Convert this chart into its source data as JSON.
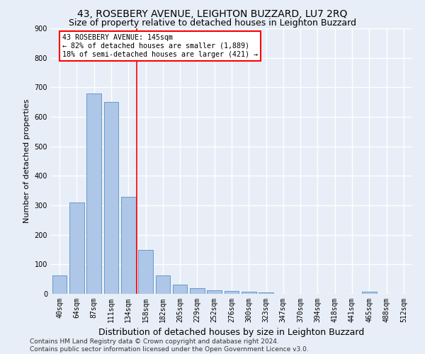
{
  "title": "43, ROSEBERY AVENUE, LEIGHTON BUZZARD, LU7 2RQ",
  "subtitle": "Size of property relative to detached houses in Leighton Buzzard",
  "xlabel": "Distribution of detached houses by size in Leighton Buzzard",
  "ylabel": "Number of detached properties",
  "categories": [
    "40sqm",
    "64sqm",
    "87sqm",
    "111sqm",
    "134sqm",
    "158sqm",
    "182sqm",
    "205sqm",
    "229sqm",
    "252sqm",
    "276sqm",
    "300sqm",
    "323sqm",
    "347sqm",
    "370sqm",
    "394sqm",
    "418sqm",
    "441sqm",
    "465sqm",
    "488sqm",
    "512sqm"
  ],
  "values": [
    62,
    310,
    680,
    650,
    330,
    150,
    63,
    32,
    20,
    12,
    10,
    8,
    5,
    0,
    0,
    0,
    0,
    0,
    8,
    0,
    0
  ],
  "bar_color": "#aec6e8",
  "bar_edge_color": "#5a8fc0",
  "ref_line_x": 4.5,
  "ref_line_color": "red",
  "annotation_text": "43 ROSEBERY AVENUE: 145sqm\n← 82% of detached houses are smaller (1,889)\n18% of semi-detached houses are larger (421) →",
  "annotation_box_color": "white",
  "annotation_box_edge_color": "red",
  "ylim": [
    0,
    900
  ],
  "yticks": [
    0,
    100,
    200,
    300,
    400,
    500,
    600,
    700,
    800,
    900
  ],
  "footer_text": "Contains HM Land Registry data © Crown copyright and database right 2024.\nContains public sector information licensed under the Open Government Licence v3.0.",
  "background_color": "#e8eef7",
  "grid_color": "white",
  "title_fontsize": 10,
  "subtitle_fontsize": 9,
  "tick_fontsize": 7,
  "ylabel_fontsize": 8,
  "xlabel_fontsize": 9,
  "footer_fontsize": 6.5
}
